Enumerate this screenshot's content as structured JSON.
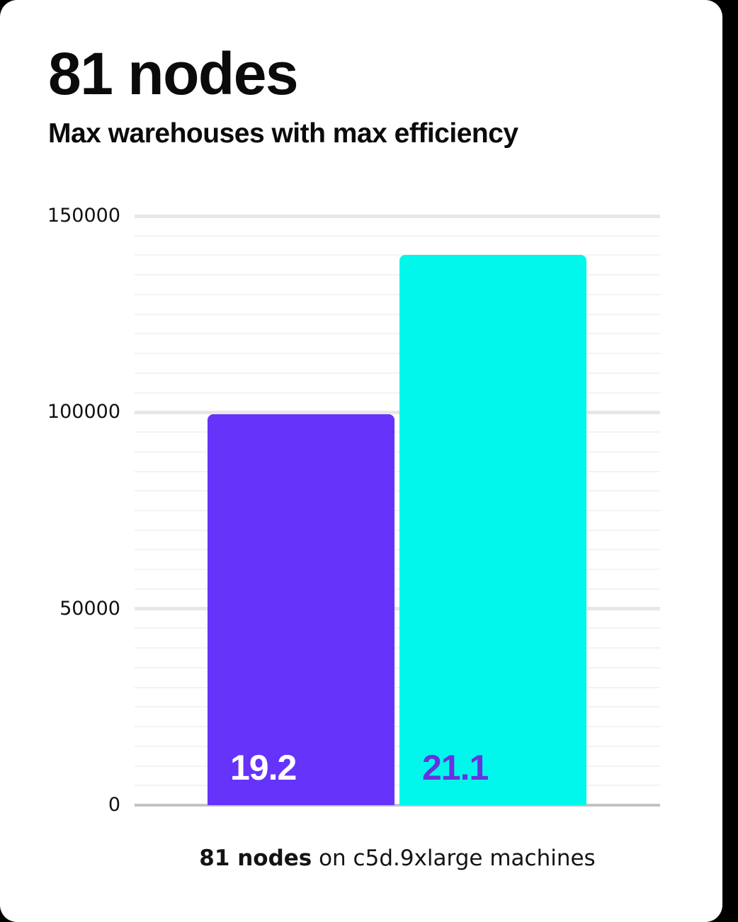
{
  "header": {
    "title": "81 nodes",
    "subtitle": "Max warehouses with max efficiency"
  },
  "caption": {
    "bold": "81 nodes",
    "rest": " on c5d.9xlarge machines"
  },
  "colors": {
    "card_background": "#ffffff",
    "page_background": "#000000",
    "purple_bar": "#6633fb",
    "cyan_bar": "#00f7ec",
    "purple_label_on_cyan": "#6633e0",
    "white_label_on_purple": "#ffffff",
    "major_gridline": "#e7e7e7",
    "minor_gridline": "#f3f3f3",
    "axis_line": "#c3c3c3"
  },
  "chart_data": {
    "type": "bar",
    "title": "81 nodes",
    "subtitle": "Max warehouses with max efficiency",
    "xlabel": "81 nodes on c5d.9xlarge machines",
    "ylabel": "",
    "categories": [
      "19.2",
      "21.1"
    ],
    "series": [
      {
        "name": "max warehouses",
        "values": [
          99500,
          140000
        ]
      }
    ],
    "bar_labels": [
      "19.2",
      "21.1"
    ],
    "bar_colors": [
      "#6633fb",
      "#00f7ec"
    ],
    "bar_label_colors": [
      "#ffffff",
      "#6633e0"
    ],
    "ylim": [
      0,
      150000
    ],
    "yticks": [
      0,
      50000,
      100000,
      150000
    ],
    "major_step": 50000,
    "minor_step": 5000,
    "grid": true,
    "legend": false
  }
}
